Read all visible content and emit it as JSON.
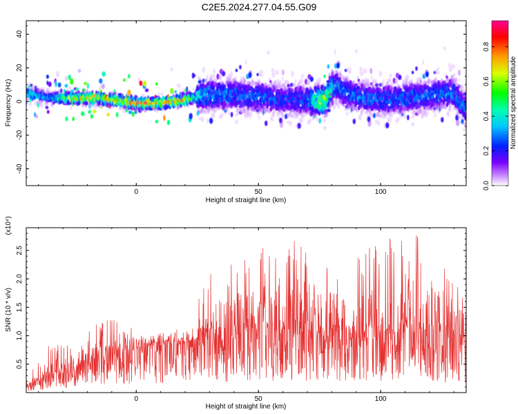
{
  "title": "C2E5.2024.277.04.55.G09",
  "colors": {
    "snr_line": "#e53030",
    "axis": "#000000"
  },
  "chart_data": [
    {
      "type": "heatmap",
      "xlabel": "Height of straight line (km)",
      "ylabel": "Frequency (Hz)",
      "xlim": [
        -45,
        135
      ],
      "ylim": [
        -50,
        48
      ],
      "xticks": [
        0,
        50,
        100
      ],
      "yticks": [
        -40,
        -20,
        0,
        20,
        40
      ],
      "colorbar": {
        "label": "Normalized spectral amplitude",
        "range": [
          0,
          0.95
        ],
        "ticks": [
          "0.0",
          "0.2",
          "0.4",
          "0.6",
          "0.8"
        ],
        "colormap": "rainbow (purple-blue-cyan-green-yellow-orange-red-magenta)"
      },
      "ridge": {
        "x": [
          -45,
          -35,
          -25,
          -15,
          -5,
          0,
          10,
          20,
          25,
          30,
          40,
          50,
          60,
          70,
          77,
          80,
          82,
          85,
          90,
          100,
          110,
          120,
          130,
          135
        ],
        "y": [
          5,
          2,
          2,
          2,
          0,
          -1,
          -1,
          1,
          3,
          4,
          4,
          3,
          1,
          1,
          0,
          8,
          10,
          6,
          3,
          1,
          2,
          4,
          5,
          -5
        ],
        "peak_amplitude": [
          0.45,
          0.35,
          0.7,
          0.75,
          0.8,
          0.85,
          0.8,
          0.75,
          0.4,
          0.35,
          0.3,
          0.3,
          0.25,
          0.3,
          0.7,
          0.45,
          0.3,
          0.3,
          0.3,
          0.3,
          0.3,
          0.3,
          0.3,
          0.3
        ]
      }
    },
    {
      "type": "line",
      "xlabel": "Height of straight line (km)",
      "ylabel": "SNR (10 * v/v)",
      "y_multiplier": "(x10⁴)",
      "xlim": [
        -45,
        135
      ],
      "ylim": [
        0,
        2.9
      ],
      "xticks": [
        0,
        50,
        100
      ],
      "yticks": [
        "0.5",
        "1.0",
        "1.5",
        "2.0",
        "2.5"
      ],
      "envelope": {
        "x": [
          -45,
          -35,
          -25,
          -15,
          -5,
          5,
          15,
          25,
          26,
          35,
          50,
          60,
          70,
          80,
          85,
          95,
          110,
          125,
          135
        ],
        "y_mean": [
          0.1,
          0.3,
          0.4,
          0.6,
          0.7,
          0.8,
          0.85,
          0.9,
          0.9,
          0.9,
          0.95,
          1.0,
          1.0,
          0.95,
          0.9,
          0.95,
          1.0,
          0.9,
          0.8
        ],
        "y_max": [
          0.25,
          0.9,
          0.85,
          1.25,
          1.35,
          1.05,
          1.05,
          1.05,
          2.05,
          2.2,
          2.5,
          2.75,
          2.6,
          2.35,
          2.2,
          2.55,
          2.9,
          2.6,
          1.8
        ]
      }
    }
  ]
}
